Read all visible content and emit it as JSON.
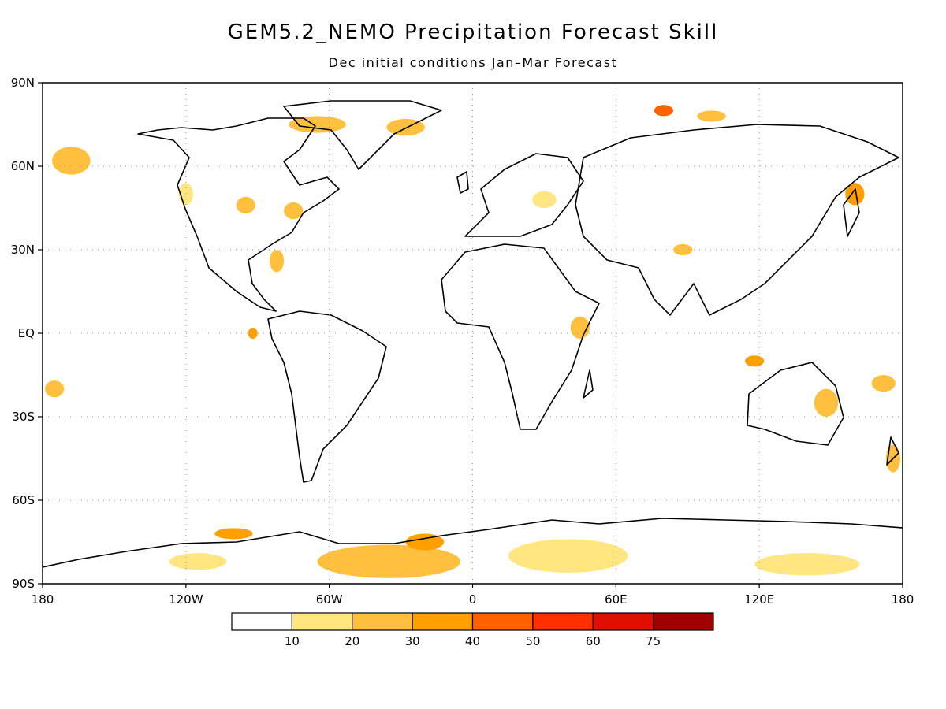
{
  "title": "GEM5.2_NEMO Precipitation Forecast Skill",
  "subtitle": "Dec initial conditions   Jan–Mar Forecast",
  "map": {
    "lat_range": [
      -90,
      90
    ],
    "lon_range": [
      -180,
      180
    ],
    "lat_ticks": [
      {
        "value": 90,
        "label": "90N"
      },
      {
        "value": 60,
        "label": "60N"
      },
      {
        "value": 30,
        "label": "30N"
      },
      {
        "value": 0,
        "label": "EQ"
      },
      {
        "value": -30,
        "label": "30S"
      },
      {
        "value": -60,
        "label": "60S"
      },
      {
        "value": -90,
        "label": "90S"
      }
    ],
    "lon_ticks": [
      {
        "value": -180,
        "label": "180"
      },
      {
        "value": -120,
        "label": "120W"
      },
      {
        "value": -60,
        "label": "60W"
      },
      {
        "value": 0,
        "label": "0"
      },
      {
        "value": 60,
        "label": "60E"
      },
      {
        "value": 120,
        "label": "120E"
      },
      {
        "value": 180,
        "label": "180"
      }
    ],
    "grid": true,
    "coastline_color": "#000000"
  },
  "colorbar": {
    "colors": [
      "#ffffff",
      "#ffe680",
      "#ffc040",
      "#ffa000",
      "#ff6000",
      "#ff3000",
      "#e01000",
      "#a00000"
    ],
    "labels": [
      "10",
      "20",
      "30",
      "40",
      "50",
      "60",
      "75"
    ]
  },
  "skill_regions": [
    {
      "lon": -168,
      "lat": 62,
      "rx": 8,
      "ry": 5,
      "level": 2
    },
    {
      "lon": -120,
      "lat": 50,
      "rx": 3,
      "ry": 4,
      "level": 1
    },
    {
      "lon": -95,
      "lat": 46,
      "rx": 4,
      "ry": 3,
      "level": 2
    },
    {
      "lon": -75,
      "lat": 44,
      "rx": 4,
      "ry": 3,
      "level": 2
    },
    {
      "lon": -65,
      "lat": 75,
      "rx": 12,
      "ry": 3,
      "level": 2
    },
    {
      "lon": -28,
      "lat": 74,
      "rx": 8,
      "ry": 3,
      "level": 2
    },
    {
      "lon": 80,
      "lat": 80,
      "rx": 4,
      "ry": 2,
      "level": 4
    },
    {
      "lon": 100,
      "lat": 78,
      "rx": 6,
      "ry": 2,
      "level": 2
    },
    {
      "lon": 160,
      "lat": 50,
      "rx": 4,
      "ry": 4,
      "level": 3
    },
    {
      "lon": 30,
      "lat": 48,
      "rx": 5,
      "ry": 3,
      "level": 1
    },
    {
      "lon": 88,
      "lat": 30,
      "rx": 4,
      "ry": 2,
      "level": 2
    },
    {
      "lon": -82,
      "lat": 26,
      "rx": 3,
      "ry": 4,
      "level": 2
    },
    {
      "lon": -92,
      "lat": 0,
      "rx": 2,
      "ry": 2,
      "level": 3
    },
    {
      "lon": 45,
      "lat": 2,
      "rx": 4,
      "ry": 4,
      "level": 2
    },
    {
      "lon": 148,
      "lat": -25,
      "rx": 5,
      "ry": 5,
      "level": 2
    },
    {
      "lon": -175,
      "lat": -20,
      "rx": 4,
      "ry": 3,
      "level": 2
    },
    {
      "lon": 172,
      "lat": -18,
      "rx": 5,
      "ry": 3,
      "level": 2
    },
    {
      "lon": 176,
      "lat": -45,
      "rx": 3,
      "ry": 5,
      "level": 2
    },
    {
      "lon": 118,
      "lat": -10,
      "rx": 4,
      "ry": 2,
      "level": 3
    },
    {
      "lon": -35,
      "lat": -82,
      "rx": 30,
      "ry": 6,
      "level": 2
    },
    {
      "lon": -20,
      "lat": -75,
      "rx": 8,
      "ry": 3,
      "level": 3
    },
    {
      "lon": 40,
      "lat": -80,
      "rx": 25,
      "ry": 6,
      "level": 1
    },
    {
      "lon": 140,
      "lat": -83,
      "rx": 22,
      "ry": 4,
      "level": 1
    },
    {
      "lon": -100,
      "lat": -72,
      "rx": 8,
      "ry": 2,
      "level": 3
    },
    {
      "lon": -115,
      "lat": -82,
      "rx": 12,
      "ry": 3,
      "level": 1
    }
  ]
}
